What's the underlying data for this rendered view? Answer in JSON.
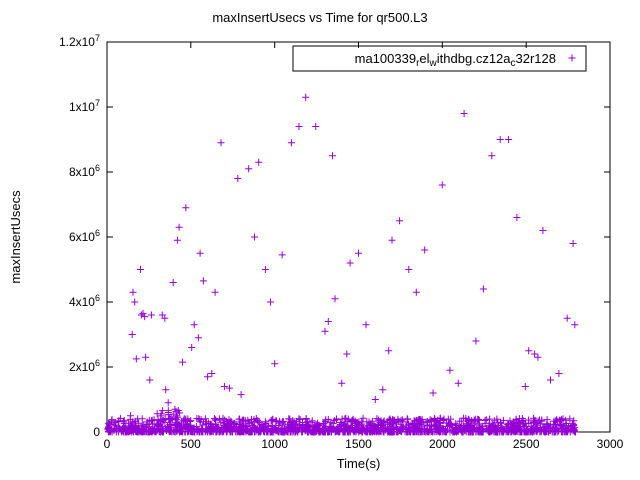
{
  "title": "maxInsertUsecs vs Time for qr500.L3",
  "legend": {
    "label_plain": "ma100339_rel_withdbg.cz12a_c32r128",
    "marker_glyph": "+",
    "segments": [
      {
        "t": "ma100339",
        "sub": false
      },
      {
        "t": "r",
        "sub": true
      },
      {
        "t": "el",
        "sub": false
      },
      {
        "t": "w",
        "sub": true
      },
      {
        "t": "ithdbg.cz12a",
        "sub": false
      },
      {
        "t": "c",
        "sub": true
      },
      {
        "t": "32r128",
        "sub": false
      }
    ]
  },
  "colors": {
    "marker": "#9400d3",
    "axis": "#000000",
    "text": "#000000",
    "background": "#ffffff"
  },
  "chart_data": {
    "type": "scatter",
    "title": "maxInsertUsecs vs Time for qr500.L3",
    "xlabel": "Time(s)",
    "ylabel": "maxInsertUsecs",
    "xlim": [
      0,
      3000
    ],
    "ylim": [
      0,
      12000000
    ],
    "grid": false,
    "legend_position": "top-right",
    "x_ticks": [
      {
        "v": 0,
        "label": "0"
      },
      {
        "v": 500,
        "label": "500"
      },
      {
        "v": 1000,
        "label": "1000"
      },
      {
        "v": 1500,
        "label": "1500"
      },
      {
        "v": 2000,
        "label": "2000"
      },
      {
        "v": 2500,
        "label": "2500"
      },
      {
        "v": 3000,
        "label": "3000"
      }
    ],
    "y_ticks": [
      {
        "v": 0,
        "label": "0"
      },
      {
        "v": 2000000,
        "label": "2x10^6"
      },
      {
        "v": 4000000,
        "label": "4x10^6"
      },
      {
        "v": 6000000,
        "label": "6x10^6"
      },
      {
        "v": 8000000,
        "label": "8x10^6"
      },
      {
        "v": 10000000,
        "label": "1x10^7"
      },
      {
        "v": 12000000,
        "label": "1.2x10^7"
      }
    ],
    "series": [
      {
        "name": "ma100339_rel_withdbg.cz12a_c32r128",
        "marker": "plus",
        "color": "#9400d3",
        "outlier_points": [
          [
            140,
            500000
          ],
          [
            150,
            3000000
          ],
          [
            155,
            4300000
          ],
          [
            165,
            4000000
          ],
          [
            175,
            2250000
          ],
          [
            200,
            5000000
          ],
          [
            205,
            3600000
          ],
          [
            215,
            3650000
          ],
          [
            225,
            3550000
          ],
          [
            230,
            2300000
          ],
          [
            255,
            1600000
          ],
          [
            265,
            3600000
          ],
          [
            330,
            3600000
          ],
          [
            345,
            3500000
          ],
          [
            350,
            1300000
          ],
          [
            365,
            900000
          ],
          [
            395,
            4600000
          ],
          [
            405,
            700000
          ],
          [
            420,
            5900000
          ],
          [
            430,
            6300000
          ],
          [
            450,
            2150000
          ],
          [
            470,
            6900000
          ],
          [
            505,
            2600000
          ],
          [
            520,
            3300000
          ],
          [
            545,
            2900000
          ],
          [
            555,
            5500000
          ],
          [
            575,
            4650000
          ],
          [
            600,
            1700000
          ],
          [
            625,
            1800000
          ],
          [
            645,
            4300000
          ],
          [
            680,
            8900000
          ],
          [
            700,
            1400000
          ],
          [
            730,
            1350000
          ],
          [
            780,
            7800000
          ],
          [
            800,
            1150000
          ],
          [
            845,
            8100000
          ],
          [
            880,
            6000000
          ],
          [
            905,
            8300000
          ],
          [
            945,
            5000000
          ],
          [
            975,
            4000000
          ],
          [
            1000,
            2100000
          ],
          [
            1045,
            5450000
          ],
          [
            1100,
            8900000
          ],
          [
            1145,
            9400000
          ],
          [
            1185,
            10300000
          ],
          [
            1245,
            9400000
          ],
          [
            1300,
            3100000
          ],
          [
            1320,
            3400000
          ],
          [
            1345,
            8500000
          ],
          [
            1360,
            4100000
          ],
          [
            1400,
            1500000
          ],
          [
            1430,
            2400000
          ],
          [
            1450,
            5200000
          ],
          [
            1500,
            5500000
          ],
          [
            1545,
            3300000
          ],
          [
            1600,
            1000000
          ],
          [
            1645,
            1300000
          ],
          [
            1680,
            2500000
          ],
          [
            1700,
            5900000
          ],
          [
            1745,
            6500000
          ],
          [
            1800,
            5000000
          ],
          [
            1845,
            4300000
          ],
          [
            1895,
            5600000
          ],
          [
            1945,
            1200000
          ],
          [
            2000,
            7600000
          ],
          [
            2045,
            1900000
          ],
          [
            2095,
            1500000
          ],
          [
            2130,
            9800000
          ],
          [
            2200,
            2800000
          ],
          [
            2245,
            4400000
          ],
          [
            2295,
            8500000
          ],
          [
            2345,
            9000000
          ],
          [
            2395,
            9000000
          ],
          [
            2445,
            6600000
          ],
          [
            2495,
            1400000
          ],
          [
            2515,
            2500000
          ],
          [
            2550,
            2400000
          ],
          [
            2570,
            2300000
          ],
          [
            2600,
            6200000
          ],
          [
            2645,
            1600000
          ],
          [
            2695,
            1800000
          ],
          [
            2745,
            3500000
          ],
          [
            2780,
            5800000
          ],
          [
            2790,
            3300000
          ]
        ],
        "baseline_band": {
          "count": 1600,
          "x_range": [
            5,
            2795
          ],
          "y_range": [
            0,
            430000
          ],
          "bias": 2.4,
          "seed": 13,
          "bump": {
            "x_range": [
              295,
              435
            ],
            "y_max": 780000,
            "chance": 0.5
          }
        }
      }
    ]
  }
}
